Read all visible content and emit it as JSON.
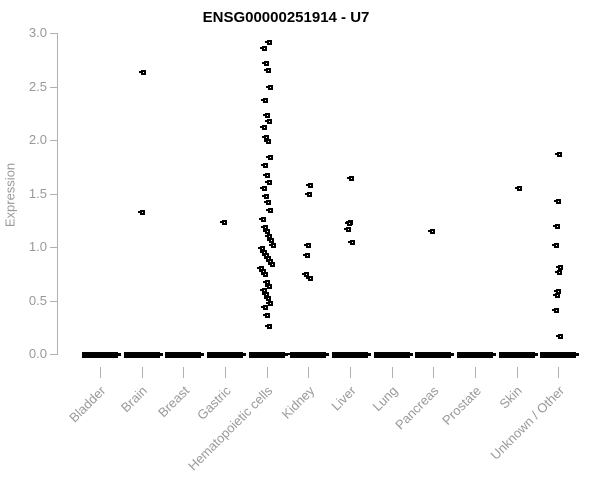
{
  "title": "ENSG00000251914 - U7",
  "chart_data": {
    "type": "scatter",
    "title": "ENSG00000251914 - U7",
    "xlabel": "",
    "ylabel": "Expression",
    "ylim": [
      0.0,
      3.0
    ],
    "yticks": [
      0.0,
      0.5,
      1.0,
      1.5,
      2.0,
      2.5,
      3.0
    ],
    "grid": false,
    "legend": "none",
    "marker": "small-black-square",
    "colors": {
      "points": "#000000",
      "axis": "#b0b0b0",
      "tick_labels": "#999999",
      "title": "#000000",
      "background": "#ffffff"
    },
    "categories": [
      "Bladder",
      "Brain",
      "Breast",
      "Gastric",
      "Hematopoietic cells",
      "Kidney",
      "Liver",
      "Lung",
      "Pancreas",
      "Prostate",
      "Skin",
      "Unknown / Other"
    ],
    "series": [
      {
        "category": "Bladder",
        "zero_cluster": true,
        "values": []
      },
      {
        "category": "Brain",
        "zero_cluster": true,
        "values": [
          2.64,
          1.33
        ]
      },
      {
        "category": "Breast",
        "zero_cluster": true,
        "values": []
      },
      {
        "category": "Gastric",
        "zero_cluster": true,
        "values": [
          1.24
        ]
      },
      {
        "category": "Hematopoietic cells",
        "zero_cluster": true,
        "zero_outlier": true,
        "values": [
          2.92,
          2.86,
          2.72,
          2.66,
          2.5,
          2.38,
          2.24,
          2.18,
          2.12,
          2.03,
          1.99,
          1.84,
          1.77,
          1.68,
          1.61,
          1.55,
          1.48,
          1.42,
          1.35,
          1.26,
          1.19,
          1.15,
          1.11,
          1.07,
          1.02,
          0.99,
          0.96,
          0.93,
          0.9,
          0.87,
          0.84,
          0.81,
          0.78,
          0.75,
          0.68,
          0.64,
          0.6,
          0.56,
          0.53,
          0.48,
          0.44,
          0.37,
          0.26
        ]
      },
      {
        "category": "Kidney",
        "zero_cluster": true,
        "values": [
          1.58,
          1.5,
          1.02,
          0.93,
          0.75,
          0.71
        ]
      },
      {
        "category": "Liver",
        "zero_cluster": true,
        "values": [
          1.65,
          1.24,
          1.23,
          1.17,
          1.05
        ]
      },
      {
        "category": "Lung",
        "zero_cluster": true,
        "values": []
      },
      {
        "category": "Pancreas",
        "zero_cluster": true,
        "values": [
          1.15
        ]
      },
      {
        "category": "Prostate",
        "zero_cluster": true,
        "values": []
      },
      {
        "category": "Skin",
        "zero_cluster": true,
        "values": [
          1.55
        ]
      },
      {
        "category": "Unknown / Other",
        "zero_cluster": true,
        "values": [
          1.87,
          1.43,
          1.2,
          1.02,
          0.82,
          0.77,
          0.59,
          0.55,
          0.41,
          0.17
        ]
      }
    ]
  }
}
